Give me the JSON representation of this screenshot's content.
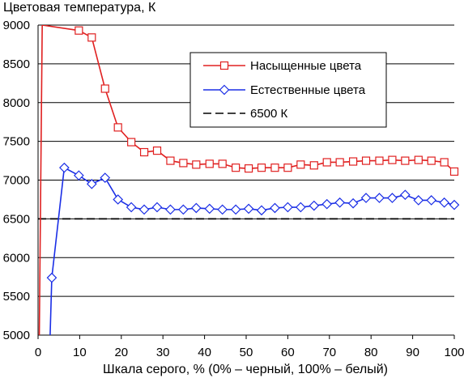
{
  "chart_data": {
    "type": "line",
    "title": "",
    "ylabel": "Цветовая температура, К",
    "xlabel": "Шкала серого, % (0% – черный, 100% – белый)",
    "xlim": [
      0,
      100
    ],
    "ylim": [
      5000,
      9000
    ],
    "xticks": [
      "0",
      "10",
      "20",
      "30",
      "40",
      "50",
      "60",
      "70",
      "80",
      "90",
      "100"
    ],
    "yticks": [
      "5000",
      "5500",
      "6000",
      "6500",
      "7000",
      "7500",
      "8000",
      "8500",
      "9000"
    ],
    "grid": "horizontal",
    "legend_position": "top-right",
    "series": [
      {
        "name": "Насыщенные цвета",
        "color": "#e02020",
        "marker": "square",
        "x": [
          0.3,
          1.0,
          9.8,
          12.9,
          16.1,
          19.2,
          22.4,
          25.5,
          28.6,
          31.8,
          34.9,
          38.0,
          41.2,
          44.3,
          47.5,
          50.6,
          53.7,
          56.9,
          60.0,
          63.1,
          66.3,
          69.4,
          72.5,
          75.7,
          78.8,
          82.0,
          85.1,
          88.2,
          91.4,
          94.5,
          97.6,
          100.0
        ],
        "y": [
          5000,
          9000,
          8930,
          8840,
          8180,
          7680,
          7490,
          7360,
          7380,
          7250,
          7220,
          7200,
          7210,
          7210,
          7160,
          7150,
          7160,
          7160,
          7160,
          7200,
          7190,
          7230,
          7230,
          7240,
          7250,
          7250,
          7260,
          7250,
          7260,
          7250,
          7230,
          7110
        ]
      },
      {
        "name": "Естественные цвета",
        "color": "#1a2ee6",
        "marker": "diamond",
        "x": [
          2.9,
          3.3,
          6.3,
          9.8,
          12.9,
          16.1,
          19.2,
          22.4,
          25.5,
          28.6,
          31.8,
          34.9,
          38.0,
          41.2,
          44.3,
          47.5,
          50.6,
          53.7,
          56.9,
          60.0,
          63.1,
          66.3,
          69.4,
          72.5,
          75.7,
          78.8,
          82.0,
          85.1,
          88.2,
          91.4,
          94.5,
          97.6,
          100.0
        ],
        "y": [
          5000,
          5740,
          7160,
          7060,
          6950,
          7030,
          6750,
          6650,
          6620,
          6650,
          6620,
          6620,
          6640,
          6630,
          6620,
          6620,
          6630,
          6610,
          6640,
          6650,
          6650,
          6670,
          6690,
          6710,
          6700,
          6770,
          6770,
          6770,
          6810,
          6740,
          6740,
          6710,
          6680
        ]
      },
      {
        "name": "6500 К",
        "color": "#000000",
        "dash": true,
        "x": [
          0,
          100
        ],
        "y": [
          6500,
          6500
        ]
      }
    ]
  }
}
